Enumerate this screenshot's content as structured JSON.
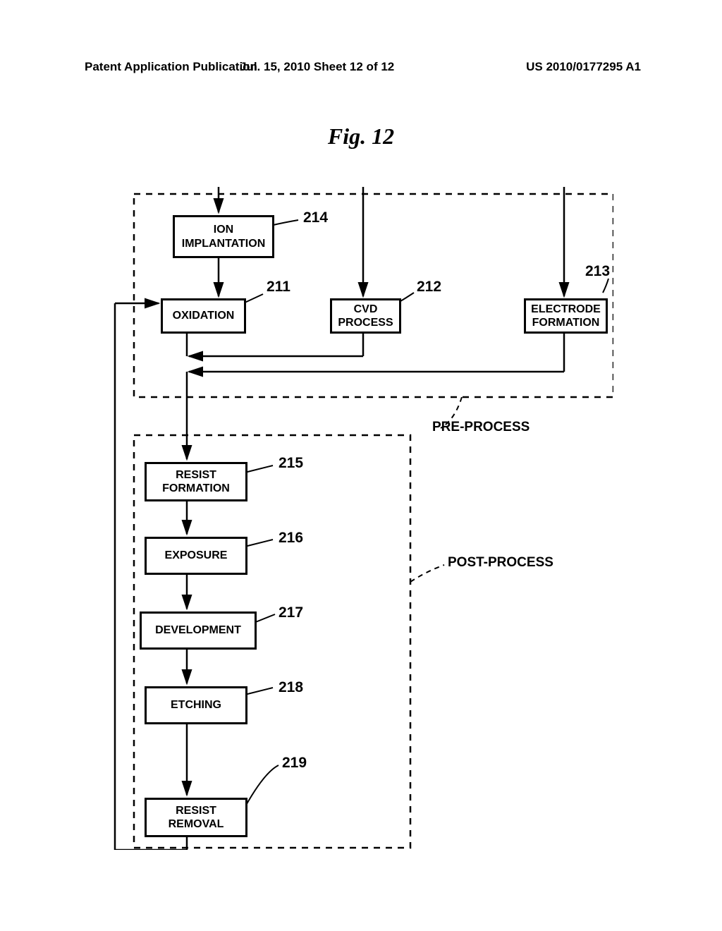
{
  "header": {
    "left": "Patent Application Publication",
    "mid": "Jul. 15, 2010  Sheet 12 of 12",
    "right": "US 2010/0177295 A1"
  },
  "figureTitle": "Fig. 12",
  "boxes": {
    "ionImplantation": {
      "label": "ION\nIMPLANTATION",
      "num": "214"
    },
    "oxidation": {
      "label": "OXIDATION",
      "num": "211"
    },
    "cvd": {
      "label": "CVD\nPROCESS",
      "num": "212"
    },
    "electrode": {
      "label": "ELECTRODE\nFORMATION",
      "num": "213"
    },
    "resistFormation": {
      "label": "RESIST\nFORMATION",
      "num": "215"
    },
    "exposure": {
      "label": "EXPOSURE",
      "num": "216"
    },
    "development": {
      "label": "DEVELOPMENT",
      "num": "217"
    },
    "etching": {
      "label": "ETCHING",
      "num": "218"
    },
    "resistRemoval": {
      "label": "RESIST\nREMOVAL",
      "num": "219"
    }
  },
  "groupLabels": {
    "preProcess": "PRE-PROCESS",
    "postProcess": "POST-PROCESS"
  },
  "style": {
    "boxBorder": "#000000",
    "dashPattern": "8,8",
    "lineColor": "#000000"
  }
}
